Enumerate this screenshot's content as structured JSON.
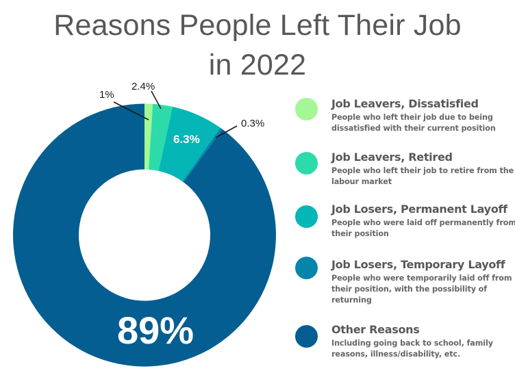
{
  "title": {
    "line1": "Reasons People Left Their Job",
    "line2": "in 2022"
  },
  "chart_data": {
    "type": "pie",
    "variant": "donut",
    "title": "Reasons People Left Their Job in 2022",
    "categories": [
      "Job Leavers, Dissatisfied",
      "Job Leavers, Retired",
      "Job Losers, Permanent Layoff",
      "Job Losers, Temporary Layoff",
      "Other Reasons"
    ],
    "values": [
      1,
      2.4,
      6.3,
      0.3,
      89
    ],
    "labels": [
      "1%",
      "2.4%",
      "6.3%",
      "0.3%",
      "89%"
    ],
    "colors": [
      "#A3F794",
      "#2CDBA9",
      "#04B6B6",
      "#0685AA",
      "#045E91"
    ],
    "unit": "%",
    "legend_position": "right",
    "start_angle": "top, clockwise"
  },
  "legend": {
    "items": [
      {
        "title": "Job Leavers, Dissatisfied",
        "description": "People who left their job due to being dissatisfied with their current position",
        "color": "#A3F794",
        "icon": "filled-circle"
      },
      {
        "title": "Job Leavers, Retired",
        "description": "People who left their job to retire from the labour market",
        "color": "#2CDBA9",
        "icon": "filled-circle"
      },
      {
        "title": "Job Losers, Permanent Layoff",
        "description": "People who were laid off permanently from their position",
        "color": "#04B6B6",
        "icon": "filled-circle"
      },
      {
        "title": "Job Losers, Temporary Layoff",
        "description": "People who were temporarily laid off from their position, with the possibility of returning",
        "color": "#0685AA",
        "icon": "filled-circle"
      },
      {
        "title": "Other Reasons",
        "description": "Including going back to school, family reasons, illness/disability, etc.",
        "color": "#045E91",
        "icon": "filled-circle"
      }
    ]
  }
}
